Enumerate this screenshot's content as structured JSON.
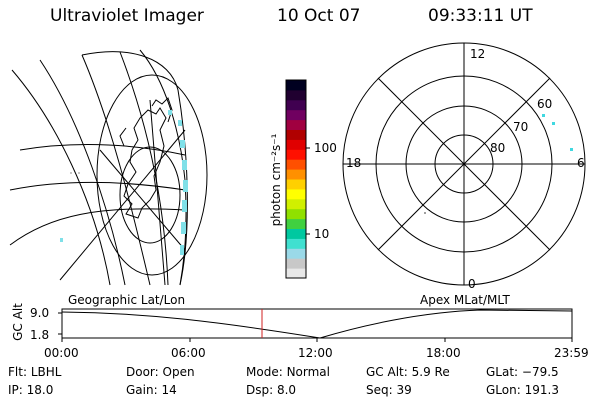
{
  "header": {
    "title": "Ultraviolet Imager",
    "date": "10 Oct 07",
    "time": "09:33:11 UT"
  },
  "colorbar": {
    "unit_label": "photon cm⁻²s⁻¹",
    "ticks": [
      {
        "label": "100",
        "value": 100
      },
      {
        "label": "10",
        "value": 10
      }
    ],
    "colors": [
      "#e8e8e8",
      "#c8c8c8",
      "#9ad9e8",
      "#40e0d0",
      "#00c8a0",
      "#40d040",
      "#90e000",
      "#d0f000",
      "#ffff00",
      "#ffd000",
      "#ff9000",
      "#ff5000",
      "#ff1000",
      "#e00000",
      "#b00000",
      "#a00040",
      "#700060",
      "#400050",
      "#200030",
      "#000020"
    ]
  },
  "polar_plot": {
    "mlt_labels": [
      "12",
      "18",
      "6",
      "0"
    ],
    "lat_labels": [
      "60",
      "70",
      "80"
    ]
  },
  "panel_labels": {
    "left": "Geographic Lat/Lon",
    "right": "Apex MLat/MLT"
  },
  "altitude_strip": {
    "ylabel": "GC Alt",
    "yticks": [
      "9.0",
      "1.8"
    ],
    "xticks": [
      "00:00",
      "06:00",
      "12:00",
      "18:00",
      "23:59"
    ]
  },
  "info": {
    "row1": [
      {
        "key": "Flt:",
        "value": "LBHL"
      },
      {
        "key": "Door:",
        "value": "Open"
      },
      {
        "key": "Mode:",
        "value": "Normal"
      },
      {
        "key": "GC Alt:",
        "value": "5.9 Re"
      },
      {
        "key": "GLat:",
        "value": "−79.5"
      }
    ],
    "row2": [
      {
        "key": "IP:",
        "value": "18.0"
      },
      {
        "key": "Gain:",
        "value": "14"
      },
      {
        "key": "Dsp:",
        "value": "8.0"
      },
      {
        "key": "Seq:",
        "value": "39"
      },
      {
        "key": "GLon:",
        "value": "191.3"
      }
    ]
  }
}
